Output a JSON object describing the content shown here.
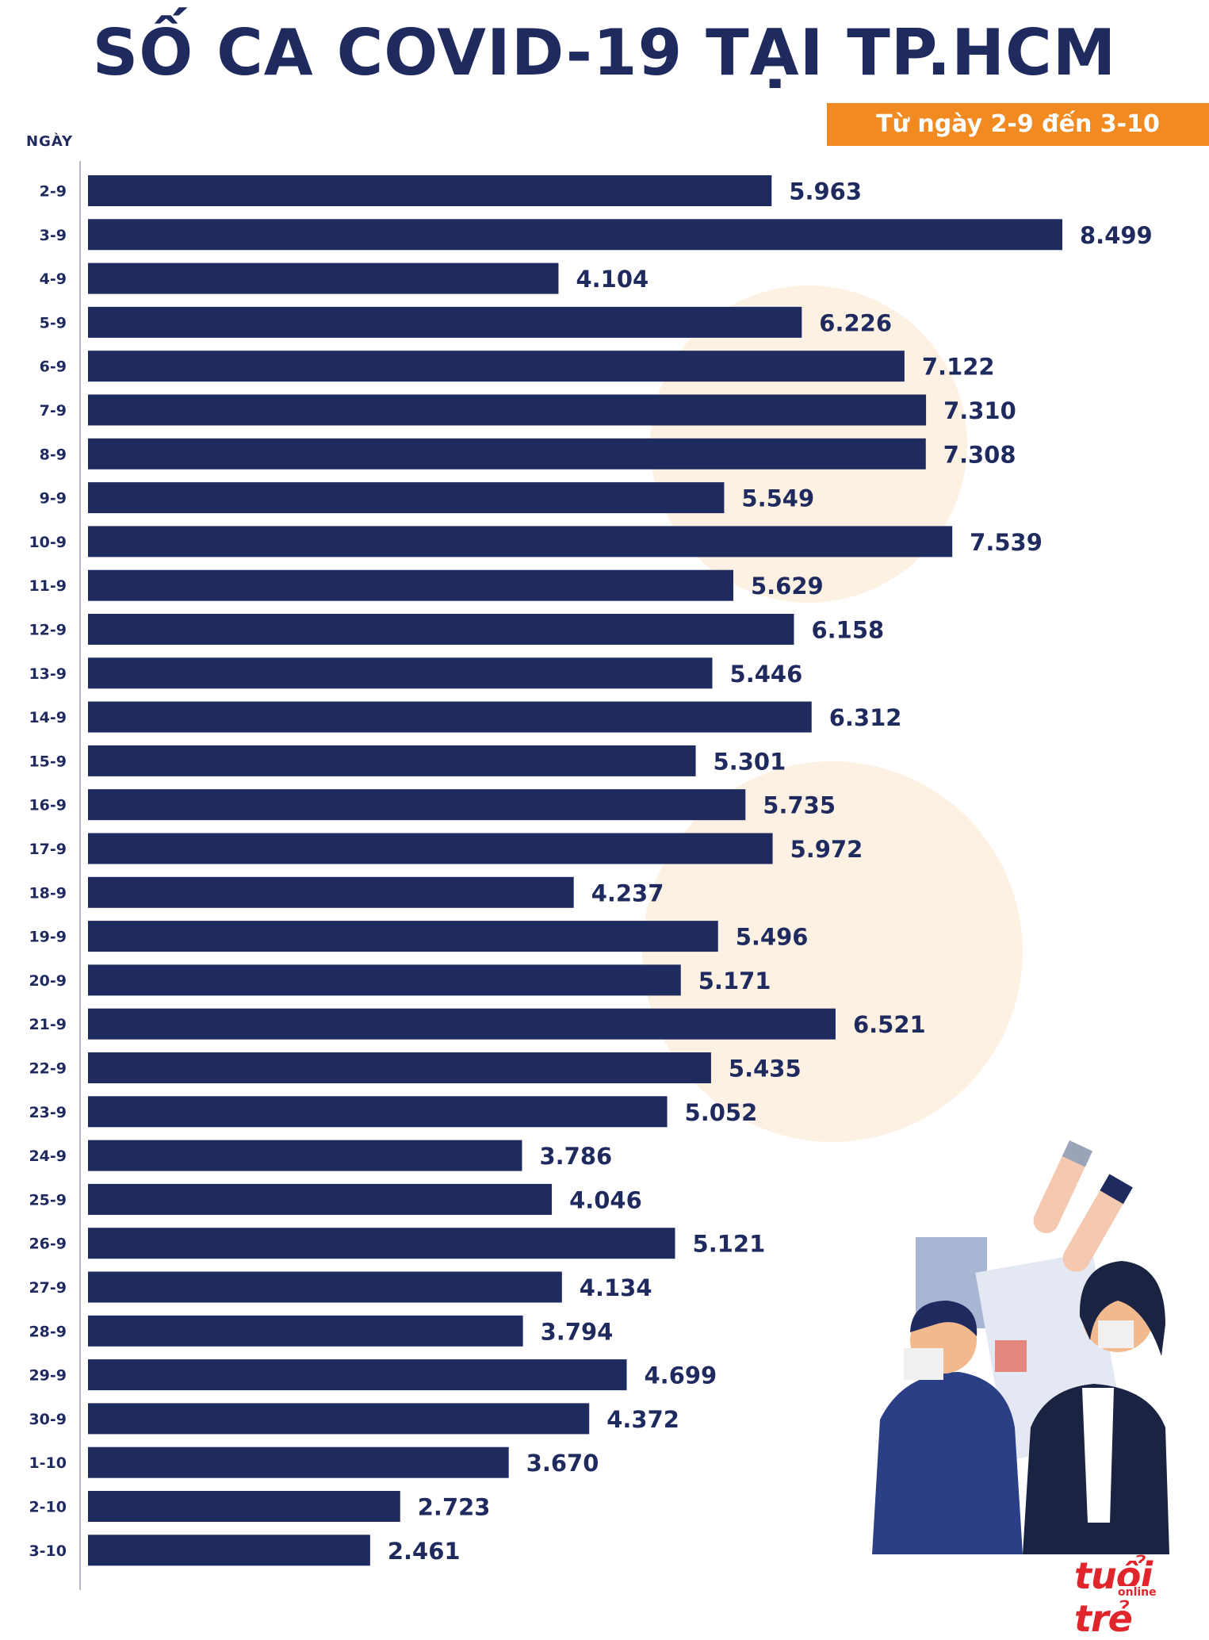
{
  "header": {
    "title": "SỐ CA COVID-19 TẠI TP.HCM",
    "subtitle": "Từ ngày 2-9 đến 3-10"
  },
  "logo": {
    "main": "tuổi trẻ",
    "sub": "online"
  },
  "colors": {
    "bar": "#1f2a5e",
    "accent": "#f28a22",
    "logo": "#e0262c"
  },
  "chart_data": {
    "type": "bar",
    "orientation": "horizontal",
    "title": "SỐ CA COVID-19 TẠI TP.HCM",
    "subtitle": "Từ ngày 2-9 đến 3-10",
    "ylabel": "NGÀY",
    "xlim": [
      0,
      8499
    ],
    "categories": [
      "2-9",
      "3-9",
      "4-9",
      "5-9",
      "6-9",
      "7-9",
      "8-9",
      "9-9",
      "10-9",
      "11-9",
      "12-9",
      "13-9",
      "14-9",
      "15-9",
      "16-9",
      "17-9",
      "18-9",
      "19-9",
      "20-9",
      "21-9",
      "22-9",
      "23-9",
      "24-9",
      "25-9",
      "26-9",
      "27-9",
      "28-9",
      "29-9",
      "30-9",
      "1-10",
      "2-10",
      "3-10"
    ],
    "values": [
      5963,
      8499,
      4104,
      6226,
      7122,
      7310,
      7308,
      5549,
      7539,
      5629,
      6158,
      5446,
      6312,
      5301,
      5735,
      5972,
      4237,
      5496,
      5171,
      6521,
      5435,
      5052,
      3786,
      4046,
      5121,
      4134,
      3794,
      4699,
      4372,
      3670,
      2723,
      2461
    ],
    "labels": [
      "5.963",
      "8.499",
      "4.104",
      "6.226",
      "7.122",
      "7.310",
      "7.308",
      "5.549",
      "7.539",
      "5.629",
      "6.158",
      "5.446",
      "6.312",
      "5.301",
      "5.735",
      "5.972",
      "4.237",
      "5.496",
      "5.171",
      "6.521",
      "5.435",
      "5.052",
      "3.786",
      "4.046",
      "5.121",
      "4.134",
      "3.794",
      "4.699",
      "4.372",
      "3.670",
      "2.723",
      "2.461"
    ]
  }
}
